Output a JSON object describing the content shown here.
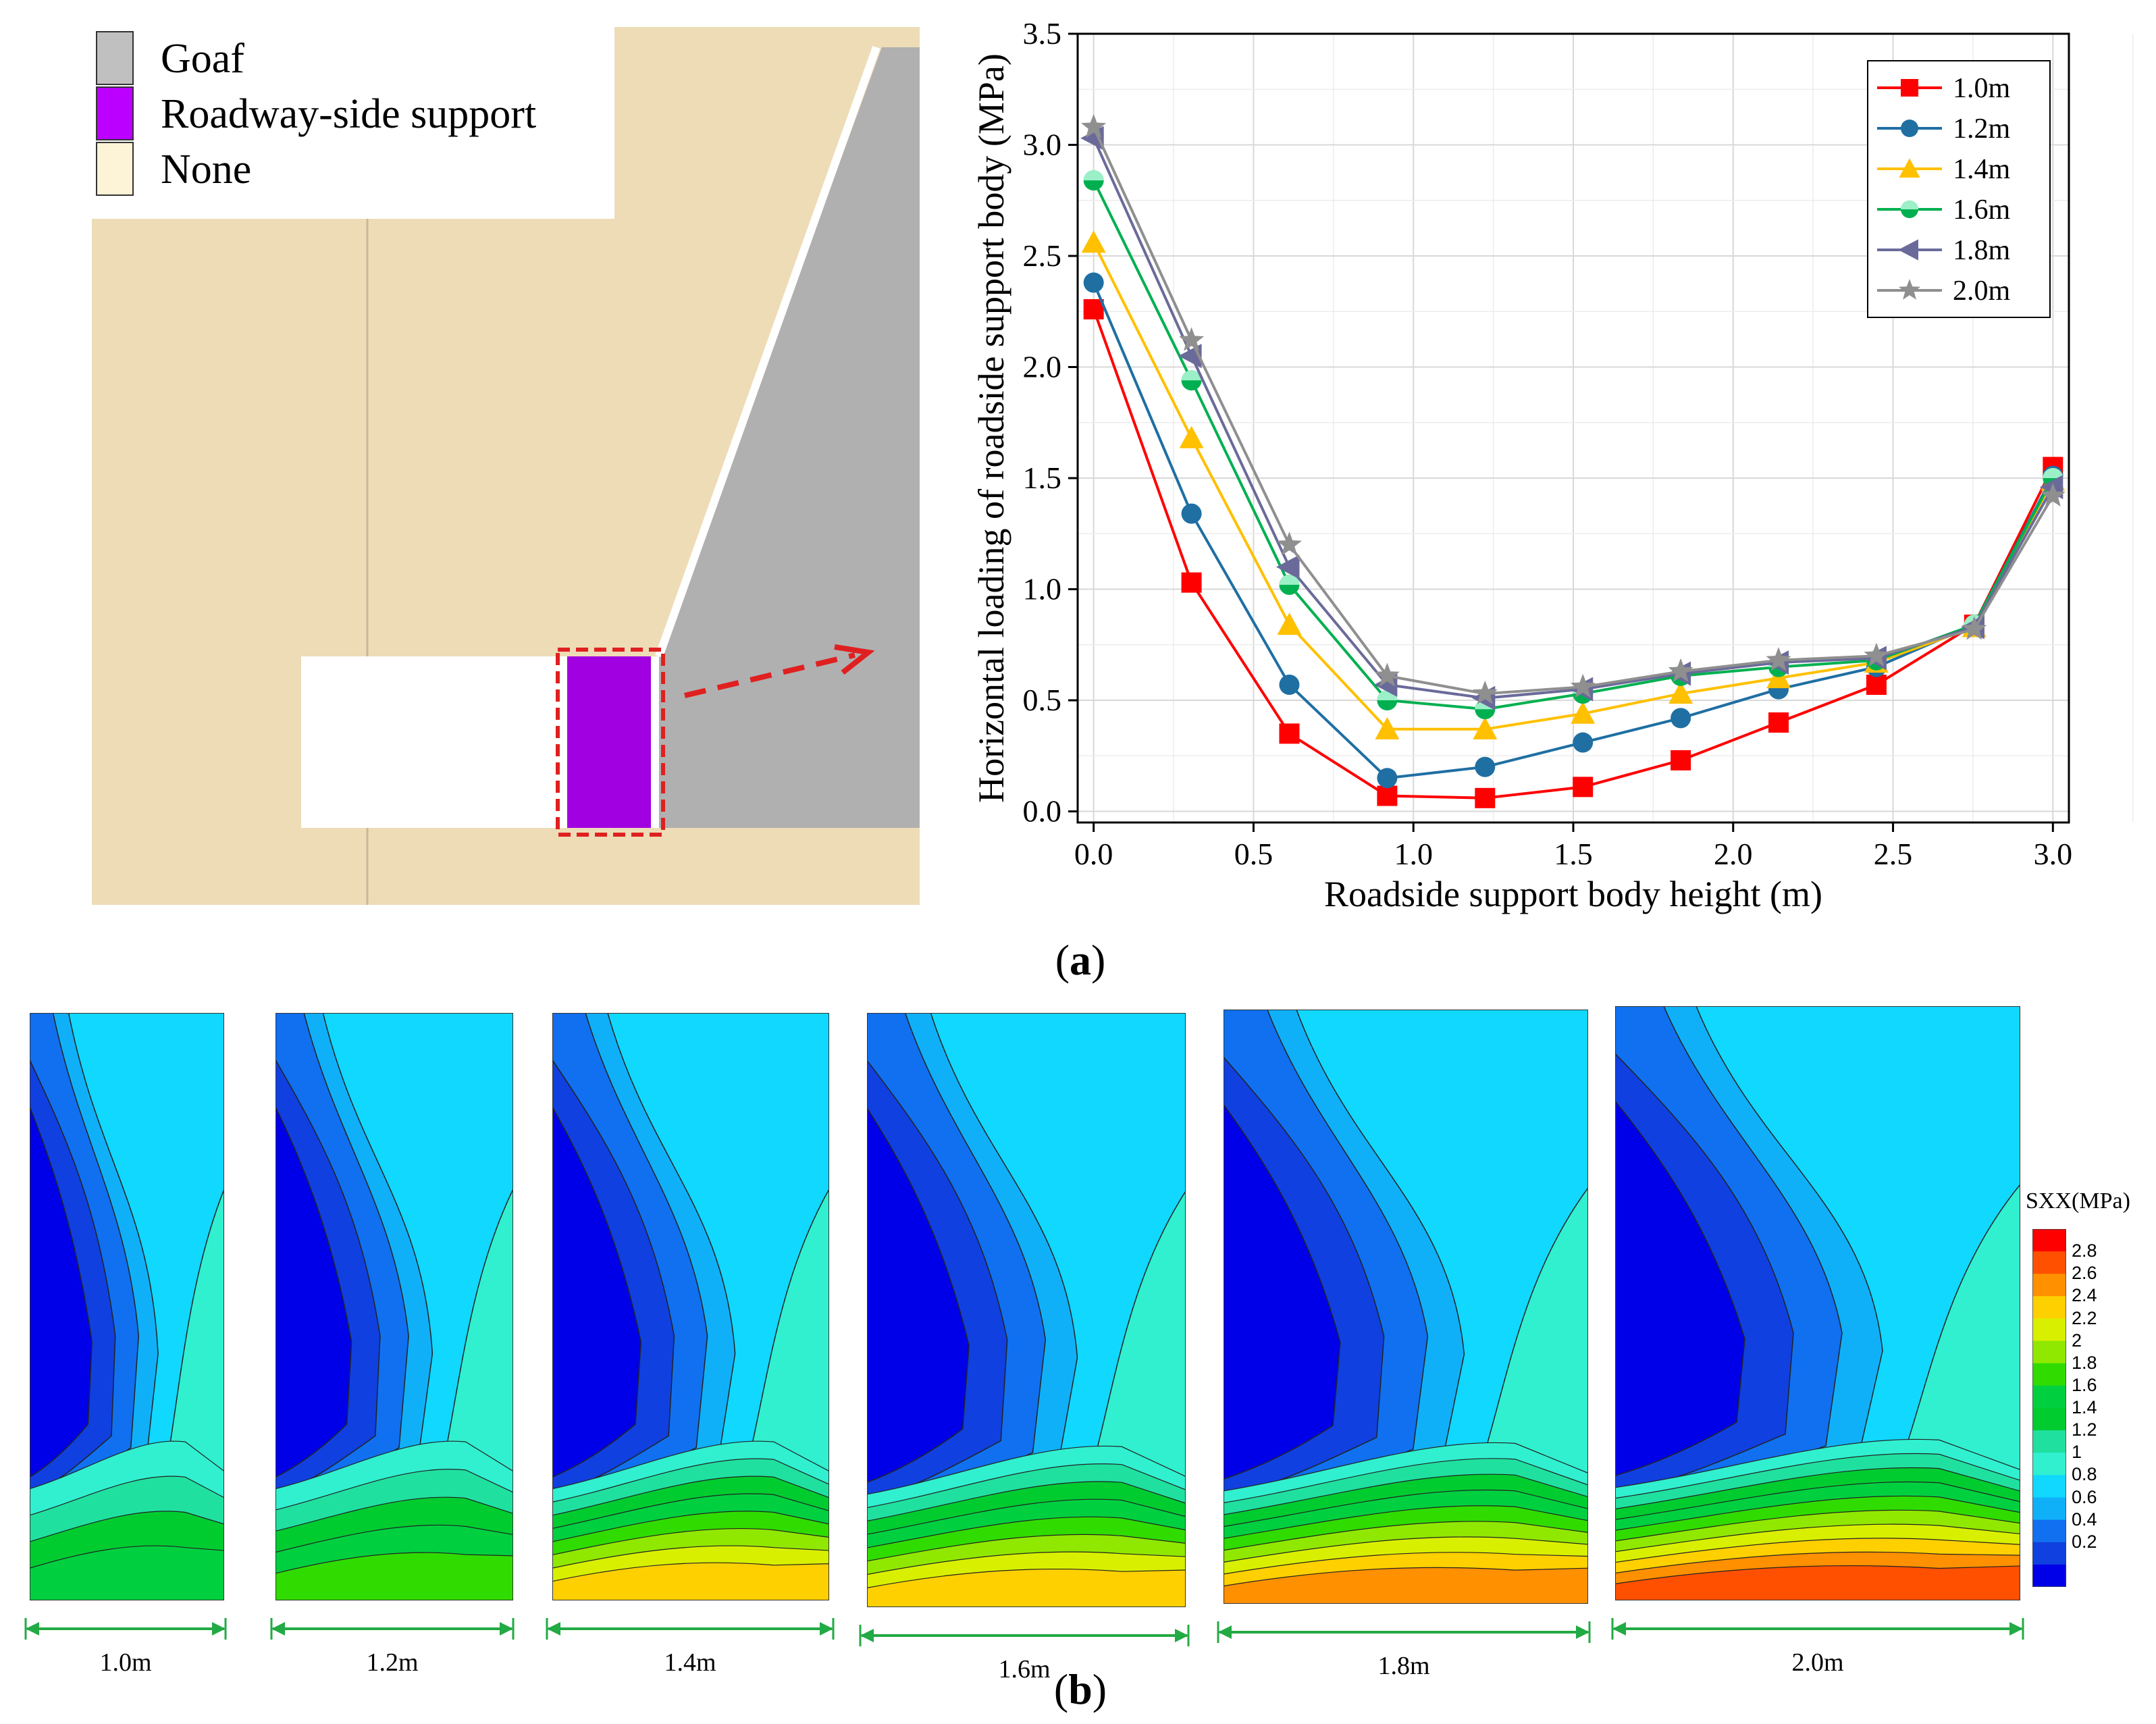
{
  "schematic": {
    "legend": [
      {
        "label": "Goaf",
        "color": "#c0c0c0"
      },
      {
        "label": "Roadway-side support",
        "color": "#bb00ff"
      },
      {
        "label": "None",
        "color": "#fdf3d6"
      }
    ],
    "colors": {
      "rock": "#eddcb6",
      "goaf": "#b0b0b0",
      "roadway": "#ffffff",
      "support": "#a100e0",
      "highlight": "#e02020"
    }
  },
  "chart_data": {
    "type": "line",
    "xlabel": "Roadside support body height (m)",
    "ylabel": "Horizontal loading of roadside support body (MPa)",
    "xlim": [
      -0.05,
      3.05
    ],
    "ylim": [
      -0.05,
      3.5
    ],
    "x_ticks": [
      "0.0",
      "0.5",
      "1.0",
      "1.5",
      "2.0",
      "2.5",
      "3.0"
    ],
    "y_ticks": [
      "0.0",
      "0.5",
      "1.0",
      "1.5",
      "2.0",
      "2.5",
      "3.0",
      "3.5"
    ],
    "grid": true,
    "legend_position": "top-right",
    "x": [
      0,
      0.306,
      0.612,
      0.918,
      1.224,
      1.53,
      1.836,
      2.142,
      2.448,
      2.754,
      3.0
    ],
    "series": [
      {
        "name": "1.0m",
        "color": "#ff0000",
        "marker": "square",
        "values": [
          2.26,
          1.03,
          0.35,
          0.07,
          0.06,
          0.11,
          0.23,
          0.4,
          0.57,
          0.84,
          1.55
        ]
      },
      {
        "name": "1.2m",
        "color": "#1f6fa3",
        "marker": "circle",
        "values": [
          2.38,
          1.34,
          0.57,
          0.15,
          0.2,
          0.31,
          0.42,
          0.55,
          0.65,
          0.84,
          1.51
        ]
      },
      {
        "name": "1.4m",
        "color": "#ffc000",
        "marker": "triangle",
        "values": [
          2.56,
          1.68,
          0.84,
          0.37,
          0.37,
          0.44,
          0.53,
          0.6,
          0.67,
          0.83,
          1.49
        ]
      },
      {
        "name": "1.6m",
        "color": "#00b050",
        "marker": "half-circle",
        "values": [
          2.84,
          1.94,
          1.02,
          0.5,
          0.46,
          0.53,
          0.61,
          0.65,
          0.68,
          0.84,
          1.5
        ]
      },
      {
        "name": "1.8m",
        "color": "#6a6a9a",
        "marker": "left-triangle",
        "values": [
          3.03,
          2.05,
          1.1,
          0.57,
          0.51,
          0.55,
          0.62,
          0.67,
          0.69,
          0.83,
          1.46
        ]
      },
      {
        "name": "2.0m",
        "color": "#8f8f8f",
        "marker": "star",
        "values": [
          3.08,
          2.12,
          1.2,
          0.61,
          0.53,
          0.56,
          0.63,
          0.68,
          0.7,
          0.82,
          1.42
        ]
      }
    ]
  },
  "labels": {
    "panel_a": "a",
    "panel_b": "b"
  },
  "contours": {
    "widths": [
      "1.0m",
      "1.2m",
      "1.4m",
      "1.6m",
      "1.8m",
      "2.0m"
    ],
    "colorbar_title": "SXX(MPa)",
    "colorbar_ticks": [
      "2.8",
      "2.6",
      "2.4",
      "2.2",
      "2",
      "1.8",
      "1.6",
      "1.4",
      "1.2",
      "1",
      "0.8",
      "0.6",
      "0.4",
      "0.2"
    ],
    "colorbar_colors": [
      "#ff0000",
      "#ff5000",
      "#ff9000",
      "#ffd000",
      "#d8f000",
      "#90e800",
      "#30dc00",
      "#00d040",
      "#00cc30",
      "#20e0a0",
      "#30f0d0",
      "#10d8ff",
      "#10b0f8",
      "#1070f0",
      "#1040e0",
      "#0000e8"
    ]
  }
}
